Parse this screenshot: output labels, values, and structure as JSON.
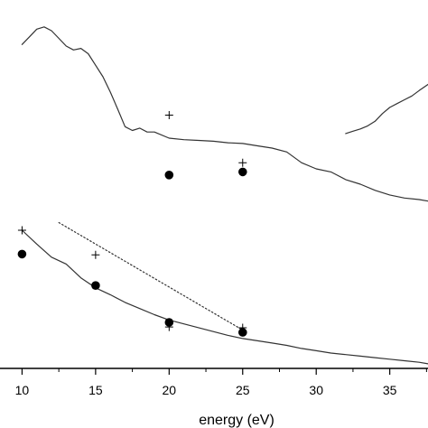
{
  "chart_data": {
    "type": "line",
    "title": "",
    "xlabel": "energy (eV)",
    "ylabel": "",
    "xlim": [
      8.5,
      37.6
    ],
    "ylim": [
      0.4,
      5.2
    ],
    "y_ticks_visible": false,
    "grid": false,
    "x_ticks": [
      {
        "value": 10,
        "label": "10"
      },
      {
        "value": 15,
        "label": "15"
      },
      {
        "value": 20,
        "label": "20"
      },
      {
        "value": 25,
        "label": "25"
      },
      {
        "value": 30,
        "label": "30"
      },
      {
        "value": 35,
        "label": "35"
      }
    ],
    "series": [
      {
        "style": "solid-line",
        "points": [
          [
            10,
            4.62
          ],
          [
            10.5,
            4.72
          ],
          [
            11,
            4.82
          ],
          [
            11.5,
            4.85
          ],
          [
            12,
            4.8
          ],
          [
            12.5,
            4.7
          ],
          [
            13,
            4.6
          ],
          [
            13.5,
            4.55
          ],
          [
            14,
            4.57
          ],
          [
            14.5,
            4.5
          ],
          [
            15,
            4.35
          ],
          [
            15.5,
            4.2
          ],
          [
            16,
            4.0
          ],
          [
            16.5,
            3.78
          ],
          [
            17,
            3.55
          ],
          [
            17.5,
            3.5
          ],
          [
            18,
            3.53
          ],
          [
            18.5,
            3.48
          ],
          [
            19,
            3.48
          ],
          [
            20,
            3.4
          ],
          [
            21,
            3.38
          ],
          [
            22,
            3.37
          ],
          [
            23,
            3.36
          ],
          [
            24,
            3.34
          ],
          [
            25,
            3.33
          ],
          [
            26,
            3.3
          ],
          [
            27,
            3.27
          ],
          [
            28,
            3.22
          ],
          [
            29,
            3.08
          ],
          [
            30,
            3.0
          ],
          [
            31,
            2.96
          ],
          [
            32,
            2.86
          ],
          [
            33,
            2.8
          ],
          [
            34,
            2.72
          ],
          [
            35,
            2.66
          ],
          [
            36,
            2.62
          ],
          [
            37,
            2.6
          ],
          [
            37.6,
            2.58
          ]
        ]
      },
      {
        "style": "solid-line",
        "points": [
          [
            32,
            3.46
          ],
          [
            32.5,
            3.49
          ],
          [
            33,
            3.52
          ],
          [
            33.5,
            3.56
          ],
          [
            34,
            3.62
          ],
          [
            34.5,
            3.72
          ],
          [
            35,
            3.8
          ],
          [
            35.5,
            3.85
          ],
          [
            36,
            3.9
          ],
          [
            36.5,
            3.95
          ],
          [
            37,
            4.02
          ],
          [
            37.6,
            4.1
          ]
        ]
      },
      {
        "style": "solid-line",
        "points": [
          [
            10,
            2.2
          ],
          [
            11,
            2.02
          ],
          [
            12,
            1.85
          ],
          [
            13,
            1.76
          ],
          [
            14,
            1.58
          ],
          [
            15,
            1.45
          ],
          [
            16,
            1.36
          ],
          [
            17,
            1.26
          ],
          [
            18,
            1.18
          ],
          [
            19,
            1.1
          ],
          [
            20,
            1.03
          ],
          [
            21,
            0.98
          ],
          [
            22,
            0.93
          ],
          [
            23,
            0.88
          ],
          [
            24,
            0.83
          ],
          [
            25,
            0.79
          ],
          [
            26,
            0.76
          ],
          [
            27,
            0.73
          ],
          [
            28,
            0.7
          ],
          [
            29,
            0.66
          ],
          [
            30,
            0.63
          ],
          [
            31,
            0.6
          ],
          [
            32,
            0.58
          ],
          [
            33,
            0.56
          ],
          [
            34,
            0.54
          ],
          [
            35,
            0.52
          ],
          [
            36,
            0.5
          ],
          [
            37,
            0.48
          ],
          [
            37.6,
            0.46
          ]
        ]
      },
      {
        "style": "dotted-line",
        "points": [
          [
            12.5,
            2.3
          ],
          [
            25,
            0.9
          ]
        ]
      },
      {
        "style": "plus-marker",
        "points": [
          [
            20,
            3.7
          ],
          [
            25,
            3.08
          ],
          [
            10,
            2.2
          ],
          [
            15,
            1.88
          ],
          [
            20,
            0.94
          ],
          [
            25,
            0.93
          ]
        ]
      },
      {
        "style": "filled-circle",
        "points": [
          [
            20,
            2.92
          ],
          [
            25,
            2.96
          ],
          [
            10,
            1.89
          ],
          [
            15,
            1.48
          ],
          [
            20,
            1.0
          ],
          [
            25,
            0.87
          ]
        ]
      }
    ]
  }
}
